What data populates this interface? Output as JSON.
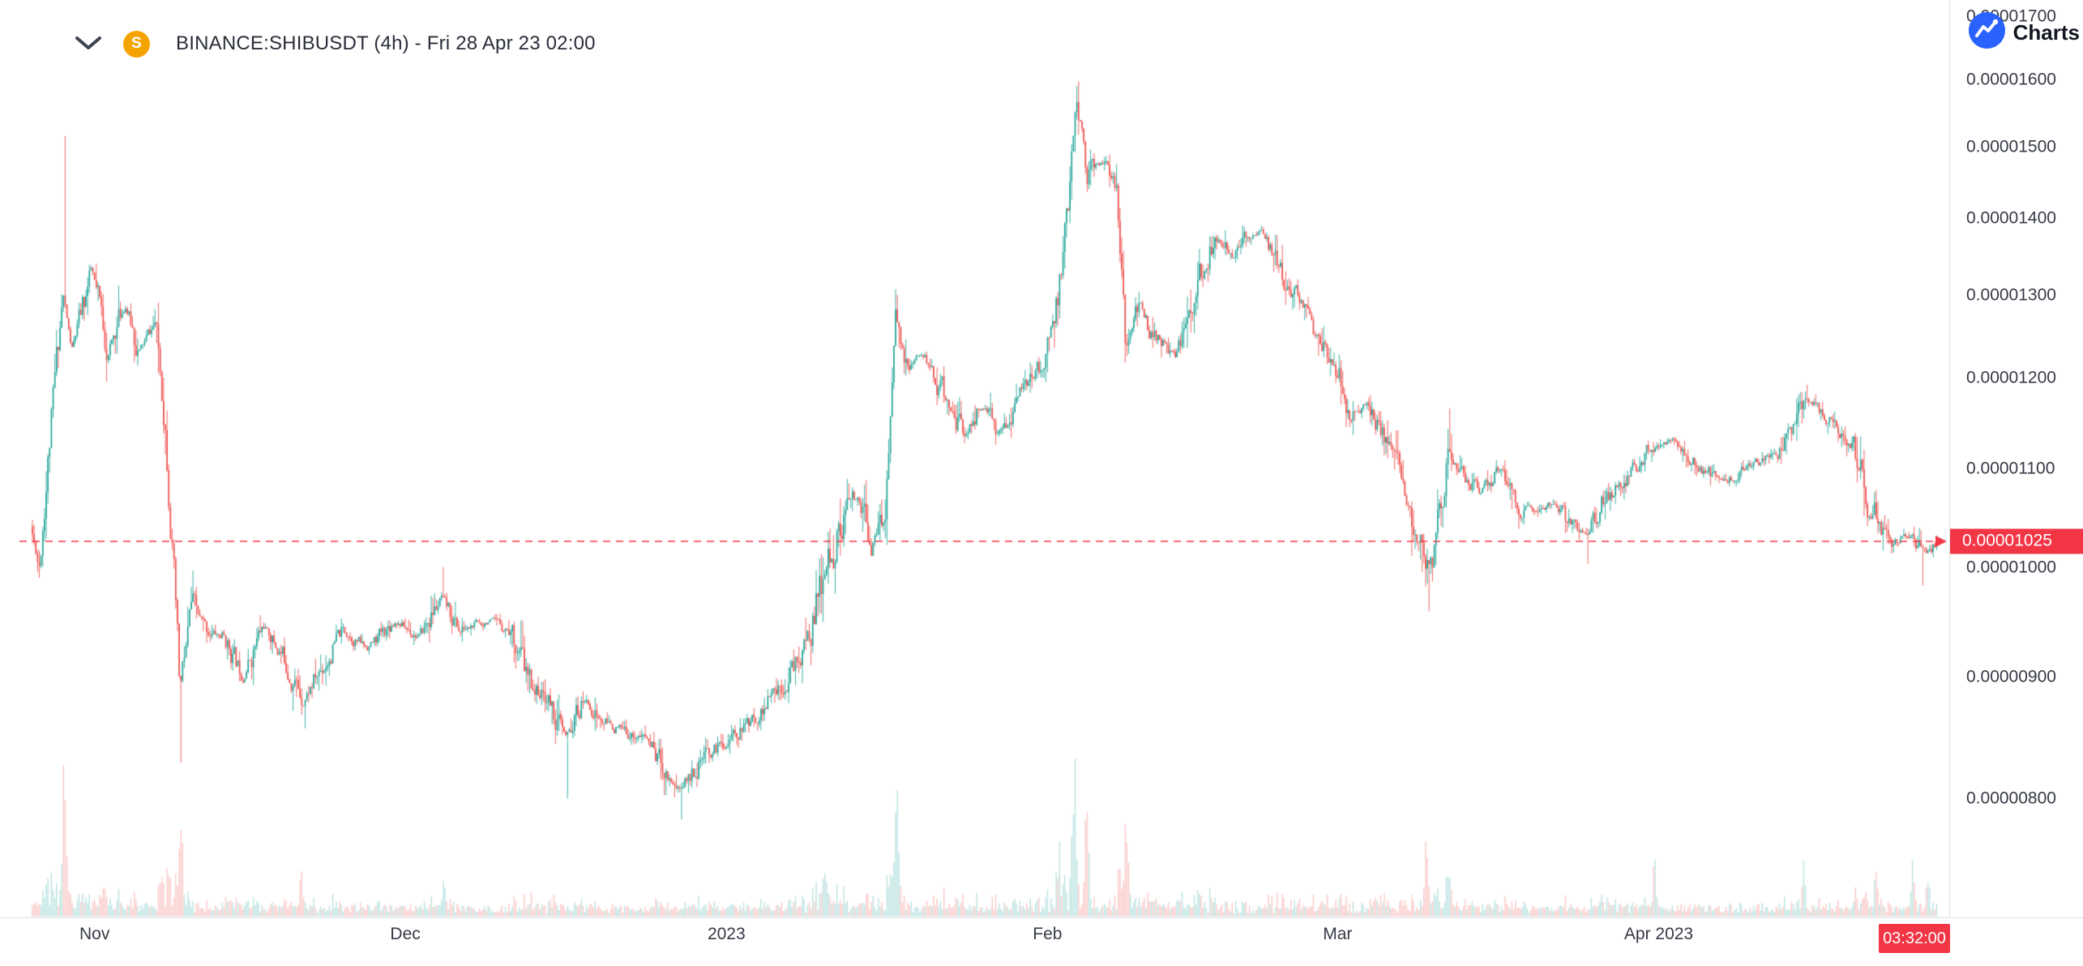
{
  "header": {
    "title": "BINANCE:SHIBUSDT (4h) - Fri 28 Apr 23 02:00",
    "coin_text": "S"
  },
  "attribution": {
    "label": "Charts"
  },
  "price_line": {
    "label": "0.00001025",
    "value_units": 1025
  },
  "countdown": "03:32:00",
  "price_axis": {
    "ticks": [
      {
        "label": "0.00001700",
        "value": 1700
      },
      {
        "label": "0.00001600",
        "value": 1600
      },
      {
        "label": "0.00001500",
        "value": 1500
      },
      {
        "label": "0.00001400",
        "value": 1400
      },
      {
        "label": "0.00001300",
        "value": 1300
      },
      {
        "label": "0.00001200",
        "value": 1200
      },
      {
        "label": "0.00001100",
        "value": 1100
      },
      {
        "label": "0.00001000",
        "value": 1000
      },
      {
        "label": "0.00000900",
        "value": 900
      },
      {
        "label": "0.00000800",
        "value": 800
      }
    ]
  },
  "time_axis": {
    "ticks": [
      {
        "label": "Nov",
        "day": 6
      },
      {
        "label": "Dec",
        "day": 36
      },
      {
        "label": "2023",
        "day": 67
      },
      {
        "label": "Feb",
        "day": 98
      },
      {
        "label": "Mar",
        "day": 126
      },
      {
        "label": "Apr 2023",
        "day": 157
      }
    ]
  },
  "colors": {
    "up": "#26a69a",
    "down": "#ef5350",
    "volume_up": "rgba(38,166,154,0.30)",
    "volume_down": "rgba(239,83,80,0.30)",
    "accent_red": "#f23645",
    "axis_text": "#363a45",
    "tv_blue": "#2962ff",
    "coin_yellow": "#f5a300"
  },
  "chart_data": {
    "type": "candlestick",
    "symbol": "BINANCE:SHIBUSDT",
    "interval": "4h",
    "last_time_label": "Fri 28 Apr 23 02:00",
    "last_price": "0.00001025",
    "last_close_units_1e8": 1025,
    "price_units_note": "prices in units of 0.00000001 USDT",
    "scale": "log",
    "y_ticks_1e8": [
      1700,
      1600,
      1500,
      1400,
      1300,
      1200,
      1100,
      1000,
      900,
      800
    ],
    "x_tick_labels": [
      "Nov",
      "Dec",
      "2023",
      "Feb",
      "Mar",
      "Apr 2023"
    ],
    "days_span": 184,
    "candles_count": 1104,
    "seed": 11,
    "price_path_anchors": [
      [
        0,
        1040
      ],
      [
        0.8,
        1000
      ],
      [
        2,
        1150
      ],
      [
        3.1,
        1300
      ],
      [
        4,
        1230
      ],
      [
        5.9,
        1330
      ],
      [
        7.5,
        1230
      ],
      [
        9.1,
        1290
      ],
      [
        10.5,
        1230
      ],
      [
        12,
        1265
      ],
      [
        13,
        1150
      ],
      [
        14.4,
        880
      ],
      [
        15.5,
        960
      ],
      [
        17,
        940
      ],
      [
        18.6,
        935
      ],
      [
        20.5,
        900
      ],
      [
        22.5,
        945
      ],
      [
        24.5,
        915
      ],
      [
        26.3,
        880
      ],
      [
        28,
        905
      ],
      [
        30.1,
        940
      ],
      [
        32.5,
        925
      ],
      [
        35.2,
        950
      ],
      [
        37.5,
        935
      ],
      [
        39.7,
        970
      ],
      [
        41.5,
        940
      ],
      [
        44.2,
        950
      ],
      [
        46.5,
        940
      ],
      [
        48,
        895
      ],
      [
        50,
        880
      ],
      [
        51.6,
        845
      ],
      [
        53.5,
        880
      ],
      [
        55,
        862
      ],
      [
        57.5,
        852
      ],
      [
        59.5,
        848
      ],
      [
        61.5,
        820
      ],
      [
        62.7,
        808
      ],
      [
        64.5,
        828
      ],
      [
        66.5,
        842
      ],
      [
        68.5,
        855
      ],
      [
        70.4,
        868
      ],
      [
        73,
        900
      ],
      [
        74.8,
        925
      ],
      [
        76.5,
        985
      ],
      [
        78.7,
        1055
      ],
      [
        80,
        1070
      ],
      [
        81.2,
        1020
      ],
      [
        82.5,
        1055
      ],
      [
        83.5,
        1270
      ],
      [
        84.5,
        1210
      ],
      [
        86.3,
        1225
      ],
      [
        88,
        1185
      ],
      [
        90.2,
        1135
      ],
      [
        91.8,
        1170
      ],
      [
        93.3,
        1135
      ],
      [
        95.9,
        1185
      ],
      [
        97.5,
        1210
      ],
      [
        99.1,
        1290
      ],
      [
        100.2,
        1420
      ],
      [
        101,
        1580
      ],
      [
        102,
        1465
      ],
      [
        103.6,
        1480
      ],
      [
        104.8,
        1440
      ],
      [
        105.7,
        1230
      ],
      [
        107,
        1290
      ],
      [
        108,
        1260
      ],
      [
        110.6,
        1225
      ],
      [
        112.5,
        1310
      ],
      [
        114.4,
        1375
      ],
      [
        116,
        1345
      ],
      [
        117,
        1370
      ],
      [
        118.9,
        1385
      ],
      [
        121.4,
        1310
      ],
      [
        123,
        1285
      ],
      [
        124.6,
        1240
      ],
      [
        126.5,
        1205
      ],
      [
        127.2,
        1160
      ],
      [
        129,
        1170
      ],
      [
        131,
        1120
      ],
      [
        133.3,
        1060
      ],
      [
        134.6,
        995
      ],
      [
        135.5,
        1010
      ],
      [
        136.8,
        1115
      ],
      [
        138.5,
        1090
      ],
      [
        140,
        1075
      ],
      [
        141.9,
        1100
      ],
      [
        143.5,
        1060
      ],
      [
        145.1,
        1055
      ],
      [
        147,
        1065
      ],
      [
        148.3,
        1045
      ],
      [
        150.2,
        1035
      ],
      [
        152,
        1070
      ],
      [
        154,
        1090
      ],
      [
        156.6,
        1125
      ],
      [
        158.5,
        1130
      ],
      [
        160.4,
        1110
      ],
      [
        163,
        1085
      ],
      [
        165.5,
        1100
      ],
      [
        168.7,
        1115
      ],
      [
        171.3,
        1175
      ],
      [
        173.8,
        1150
      ],
      [
        175.7,
        1130
      ],
      [
        177.6,
        1060
      ],
      [
        179.6,
        1025
      ],
      [
        181.5,
        1030
      ],
      [
        183,
        1010
      ],
      [
        184,
        1025
      ]
    ],
    "wick_highs": [
      [
        3.1,
        1515
      ],
      [
        39.7,
        1000
      ],
      [
        83.5,
        1300
      ],
      [
        101,
        1597
      ],
      [
        136.8,
        1165
      ],
      [
        171.3,
        1192
      ]
    ],
    "wick_lows": [
      [
        14.4,
        828
      ],
      [
        26.3,
        856
      ],
      [
        51.6,
        800
      ],
      [
        62.7,
        784
      ],
      [
        134.9,
        958
      ],
      [
        150.2,
        1003
      ],
      [
        182.5,
        982
      ]
    ],
    "volume_spikes": [
      [
        3.1,
        280,
        "down"
      ],
      [
        14.4,
        130,
        "down"
      ],
      [
        26,
        50
      ],
      [
        39.7,
        70,
        "up"
      ],
      [
        76.5,
        80,
        "up"
      ],
      [
        83.5,
        150,
        "up"
      ],
      [
        99.1,
        85
      ],
      [
        100.6,
        200,
        "up"
      ],
      [
        101.8,
        120,
        "down"
      ],
      [
        105.7,
        100,
        "down"
      ],
      [
        134.6,
        85,
        "down"
      ],
      [
        136.8,
        75,
        "up"
      ],
      [
        156.6,
        100
      ],
      [
        171,
        55
      ],
      [
        178,
        40
      ],
      [
        181.5,
        65
      ],
      [
        183,
        55
      ]
    ]
  }
}
